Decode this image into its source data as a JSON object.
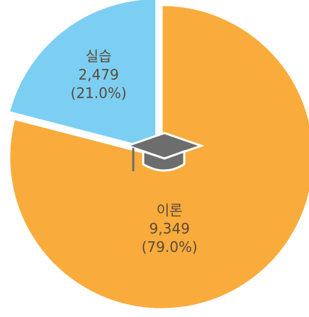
{
  "chart_data": {
    "type": "pie",
    "categories": [
      "실습",
      "이론"
    ],
    "values": [
      2479,
      9349
    ],
    "value_labels": [
      "2,479",
      "9,349"
    ],
    "percents": [
      21.0,
      79.0
    ],
    "percent_labels": [
      "(21.0%)",
      "(79.0%)"
    ],
    "colors": [
      "#7ccff3",
      "#f9ab3b"
    ],
    "exploded": [
      true,
      false
    ]
  }
}
